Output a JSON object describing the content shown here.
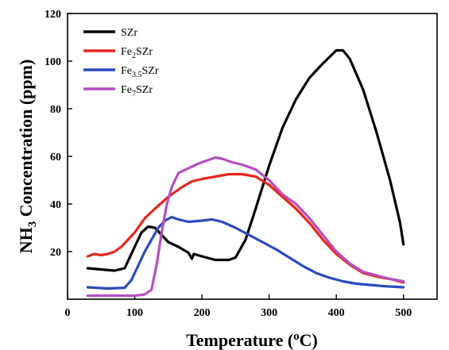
{
  "chart_data": {
    "type": "line",
    "xlabel": "Temperature (°C)",
    "ylabel": "NH3 Concentration (ppm)",
    "xlim": [
      0,
      550
    ],
    "ylim": [
      0,
      120
    ],
    "xticks": [
      0,
      100,
      200,
      300,
      400,
      500
    ],
    "yticks": [
      20,
      40,
      60,
      80,
      100,
      120
    ],
    "grid": false,
    "legend_position": "top-left",
    "series": [
      {
        "name": "SZr",
        "color": "#000000",
        "points": [
          [
            30,
            13
          ],
          [
            50,
            12.5
          ],
          [
            70,
            12
          ],
          [
            85,
            13
          ],
          [
            100,
            22
          ],
          [
            110,
            28
          ],
          [
            120,
            30.5
          ],
          [
            130,
            30
          ],
          [
            140,
            27
          ],
          [
            150,
            24
          ],
          [
            165,
            22
          ],
          [
            180,
            19.5
          ],
          [
            185,
            17
          ],
          [
            188,
            19
          ],
          [
            200,
            18
          ],
          [
            220,
            16.5
          ],
          [
            240,
            16.5
          ],
          [
            250,
            17.5
          ],
          [
            265,
            25
          ],
          [
            280,
            38
          ],
          [
            300,
            56
          ],
          [
            320,
            72
          ],
          [
            340,
            84
          ],
          [
            360,
            93
          ],
          [
            380,
            99
          ],
          [
            400,
            104.5
          ],
          [
            410,
            104.5
          ],
          [
            420,
            101
          ],
          [
            440,
            88
          ],
          [
            460,
            70
          ],
          [
            480,
            50
          ],
          [
            495,
            32
          ],
          [
            500,
            23
          ]
        ]
      },
      {
        "name": "Fe2SZr",
        "color": "#e8261f",
        "points": [
          [
            30,
            18
          ],
          [
            40,
            19
          ],
          [
            50,
            18.5
          ],
          [
            60,
            19
          ],
          [
            70,
            20
          ],
          [
            80,
            22
          ],
          [
            100,
            28
          ],
          [
            115,
            34
          ],
          [
            130,
            38
          ],
          [
            150,
            43
          ],
          [
            170,
            47
          ],
          [
            185,
            49.5
          ],
          [
            200,
            50.5
          ],
          [
            220,
            51.5
          ],
          [
            240,
            52.5
          ],
          [
            260,
            52.5
          ],
          [
            280,
            51.5
          ],
          [
            300,
            48
          ],
          [
            320,
            43
          ],
          [
            340,
            38
          ],
          [
            360,
            32
          ],
          [
            380,
            25
          ],
          [
            400,
            19
          ],
          [
            420,
            14.5
          ],
          [
            440,
            11
          ],
          [
            460,
            9.5
          ],
          [
            480,
            8.5
          ],
          [
            500,
            7
          ]
        ]
      },
      {
        "name": "Fe3.5SZr",
        "color": "#2b4ac0",
        "points": [
          [
            30,
            5
          ],
          [
            60,
            4.5
          ],
          [
            85,
            4.8
          ],
          [
            95,
            8
          ],
          [
            105,
            14
          ],
          [
            115,
            20
          ],
          [
            125,
            25
          ],
          [
            135,
            30
          ],
          [
            145,
            33
          ],
          [
            155,
            34.5
          ],
          [
            165,
            33.5
          ],
          [
            180,
            32.5
          ],
          [
            200,
            33
          ],
          [
            215,
            33.5
          ],
          [
            230,
            32.5
          ],
          [
            250,
            30
          ],
          [
            270,
            27
          ],
          [
            290,
            24
          ],
          [
            310,
            21
          ],
          [
            330,
            17.5
          ],
          [
            350,
            14
          ],
          [
            370,
            11
          ],
          [
            390,
            9
          ],
          [
            410,
            7.5
          ],
          [
            430,
            6.5
          ],
          [
            450,
            6
          ],
          [
            470,
            5.5
          ],
          [
            500,
            5
          ]
        ]
      },
      {
        "name": "Fe7SZr",
        "color": "#b450c0",
        "points": [
          [
            30,
            1.5
          ],
          [
            60,
            1.5
          ],
          [
            100,
            1.5
          ],
          [
            115,
            2
          ],
          [
            125,
            4
          ],
          [
            133,
            15
          ],
          [
            140,
            28
          ],
          [
            148,
            40
          ],
          [
            155,
            47
          ],
          [
            165,
            53
          ],
          [
            180,
            55
          ],
          [
            195,
            57
          ],
          [
            210,
            58.5
          ],
          [
            220,
            59.5
          ],
          [
            230,
            59
          ],
          [
            245,
            57.5
          ],
          [
            260,
            56.5
          ],
          [
            280,
            54.5
          ],
          [
            300,
            50
          ],
          [
            320,
            44
          ],
          [
            340,
            40
          ],
          [
            360,
            34
          ],
          [
            380,
            27
          ],
          [
            400,
            20
          ],
          [
            420,
            15
          ],
          [
            440,
            11.5
          ],
          [
            460,
            10
          ],
          [
            480,
            8.5
          ],
          [
            500,
            7.5
          ]
        ]
      }
    ]
  }
}
